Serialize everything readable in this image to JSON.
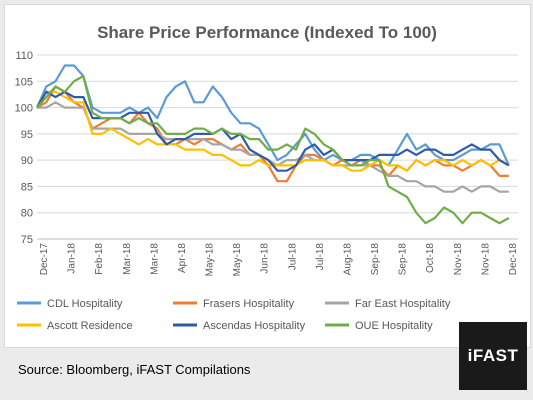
{
  "source_text": "Source: Bloomberg, iFAST Compilations",
  "logo_text": "iFAST",
  "chart_data": {
    "type": "line",
    "title": "Share Price Performance (Indexed To 100)",
    "xlabel": "",
    "ylabel": "",
    "ylim": [
      75,
      110
    ],
    "yticks": [
      75,
      80,
      85,
      90,
      95,
      100,
      105,
      110
    ],
    "x_tick_labels": [
      "Dec-17",
      "Jan-18",
      "Feb-18",
      "Mar-18",
      "Mar-18",
      "Apr-18",
      "May-18",
      "May-18",
      "Jun-18",
      "Jul-18",
      "Jul-18",
      "Aug-18",
      "Sep-18",
      "Sep-18",
      "Oct-18",
      "Nov-18",
      "Nov-18",
      "Dec-18"
    ],
    "x_range": [
      0,
      52
    ],
    "grid": true,
    "legend_position": "bottom",
    "series": [
      {
        "name": "CDL Hospitality",
        "color": "#5b9bd5",
        "x": [
          0,
          1,
          2,
          3,
          4,
          5,
          6,
          7,
          8,
          9,
          10,
          11,
          12,
          13,
          14,
          15,
          16,
          17,
          18,
          19,
          20,
          21,
          22,
          23,
          24,
          25,
          26,
          27,
          28,
          29,
          30,
          31,
          32,
          33,
          34,
          35,
          36,
          37,
          38,
          39,
          40,
          41,
          42,
          43,
          44,
          45,
          46,
          47,
          48,
          49,
          50,
          51
        ],
        "values": [
          100,
          104,
          105,
          108,
          108,
          106,
          100,
          99,
          99,
          99,
          100,
          99,
          100,
          98,
          102,
          104,
          105,
          101,
          101,
          104,
          102,
          99,
          97,
          97,
          96,
          93,
          90,
          91,
          93,
          95,
          92,
          90,
          91,
          90,
          90,
          91,
          91,
          90,
          89,
          92,
          95,
          92,
          93,
          91,
          90,
          90,
          91,
          92,
          92,
          93,
          93,
          89
        ]
      },
      {
        "name": "Frasers Hospitality",
        "color": "#ed7d31",
        "x": [
          0,
          1,
          2,
          3,
          4,
          5,
          6,
          7,
          8,
          9,
          10,
          11,
          12,
          13,
          14,
          15,
          16,
          17,
          18,
          19,
          20,
          21,
          22,
          23,
          24,
          25,
          26,
          27,
          28,
          29,
          30,
          31,
          32,
          33,
          34,
          35,
          36,
          37,
          38,
          39,
          40,
          41,
          42,
          43,
          44,
          45,
          46,
          47,
          48,
          49,
          50,
          51
        ],
        "values": [
          100,
          101,
          104,
          103,
          101,
          100,
          96,
          97,
          98,
          98,
          97,
          99,
          97,
          96,
          93,
          93,
          94,
          93,
          94,
          94,
          93,
          92,
          93,
          91,
          91,
          89,
          86,
          86,
          89,
          91,
          91,
          90,
          89,
          90,
          89,
          90,
          89,
          89,
          87,
          89,
          88,
          90,
          89,
          90,
          89,
          89,
          88,
          89,
          90,
          89,
          87,
          87
        ]
      },
      {
        "name": "Far East Hospitality",
        "color": "#a5a5a5",
        "x": [
          0,
          1,
          2,
          3,
          4,
          5,
          6,
          7,
          8,
          9,
          10,
          11,
          12,
          13,
          14,
          15,
          16,
          17,
          18,
          19,
          20,
          21,
          22,
          23,
          24,
          25,
          26,
          27,
          28,
          29,
          30,
          31,
          32,
          33,
          34,
          35,
          36,
          37,
          38,
          39,
          40,
          41,
          42,
          43,
          44,
          45,
          46,
          47,
          48,
          49,
          50,
          51
        ],
        "values": [
          100,
          100,
          101,
          100,
          100,
          100,
          96,
          96,
          96,
          96,
          95,
          95,
          95,
          95,
          94,
          94,
          94,
          94,
          94,
          93,
          93,
          92,
          92,
          91,
          91,
          90,
          89,
          90,
          90,
          91,
          90,
          90,
          89,
          89,
          89,
          89,
          89,
          88,
          87,
          87,
          86,
          86,
          85,
          85,
          84,
          84,
          85,
          84,
          85,
          85,
          84,
          84
        ]
      },
      {
        "name": "Ascott Residence",
        "color": "#ffc000",
        "x": [
          0,
          1,
          2,
          3,
          4,
          5,
          6,
          7,
          8,
          9,
          10,
          11,
          12,
          13,
          14,
          15,
          16,
          17,
          18,
          19,
          20,
          21,
          22,
          23,
          24,
          25,
          26,
          27,
          28,
          29,
          30,
          31,
          32,
          33,
          34,
          35,
          36,
          37,
          38,
          39,
          40,
          41,
          42,
          43,
          44,
          45,
          46,
          47,
          48,
          49,
          50,
          51
        ],
        "values": [
          100,
          103,
          103,
          102,
          101,
          101,
          95,
          95,
          96,
          95,
          94,
          93,
          94,
          93,
          93,
          93,
          92,
          92,
          92,
          91,
          91,
          90,
          89,
          89,
          90,
          89,
          89,
          89,
          89,
          90,
          90,
          90,
          89,
          89,
          88,
          88,
          89,
          90,
          89,
          89,
          88,
          90,
          89,
          90,
          90,
          89,
          90,
          89,
          90,
          89,
          90,
          89
        ]
      },
      {
        "name": "Ascendas Hospitality",
        "color": "#2e5ca8",
        "x": [
          0,
          1,
          2,
          3,
          4,
          5,
          6,
          7,
          8,
          9,
          10,
          11,
          12,
          13,
          14,
          15,
          16,
          17,
          18,
          19,
          20,
          21,
          22,
          23,
          24,
          25,
          26,
          27,
          28,
          29,
          30,
          31,
          32,
          33,
          34,
          35,
          36,
          37,
          38,
          39,
          40,
          41,
          42,
          43,
          44,
          45,
          46,
          47,
          48,
          49,
          50,
          51
        ],
        "values": [
          100,
          103,
          102,
          103,
          102,
          102,
          98,
          98,
          98,
          98,
          99,
          99,
          99,
          95,
          93,
          94,
          94,
          95,
          95,
          95,
          96,
          94,
          95,
          92,
          91,
          90,
          88,
          88,
          89,
          92,
          93,
          91,
          92,
          90,
          90,
          90,
          90,
          91,
          91,
          91,
          92,
          91,
          92,
          92,
          91,
          91,
          92,
          93,
          92,
          92,
          90,
          89
        ]
      },
      {
        "name": "OUE Hospitality",
        "color": "#70ad47",
        "x": [
          0,
          1,
          2,
          3,
          4,
          5,
          6,
          7,
          8,
          9,
          10,
          11,
          12,
          13,
          14,
          15,
          16,
          17,
          18,
          19,
          20,
          21,
          22,
          23,
          24,
          25,
          26,
          27,
          28,
          29,
          30,
          31,
          32,
          33,
          34,
          35,
          36,
          37,
          38,
          39,
          40,
          41,
          42,
          43,
          44,
          45,
          46,
          47,
          48,
          49,
          50,
          51
        ],
        "values": [
          100,
          102,
          104,
          103,
          105,
          106,
          99,
          98,
          98,
          98,
          97,
          98,
          97,
          97,
          95,
          95,
          95,
          96,
          96,
          95,
          96,
          95,
          95,
          94,
          94,
          92,
          92,
          93,
          92,
          96,
          95,
          93,
          92,
          90,
          89,
          89,
          90,
          90,
          85,
          84,
          83,
          80,
          78,
          79,
          81,
          80,
          78,
          80,
          80,
          79,
          78,
          79
        ]
      }
    ]
  }
}
